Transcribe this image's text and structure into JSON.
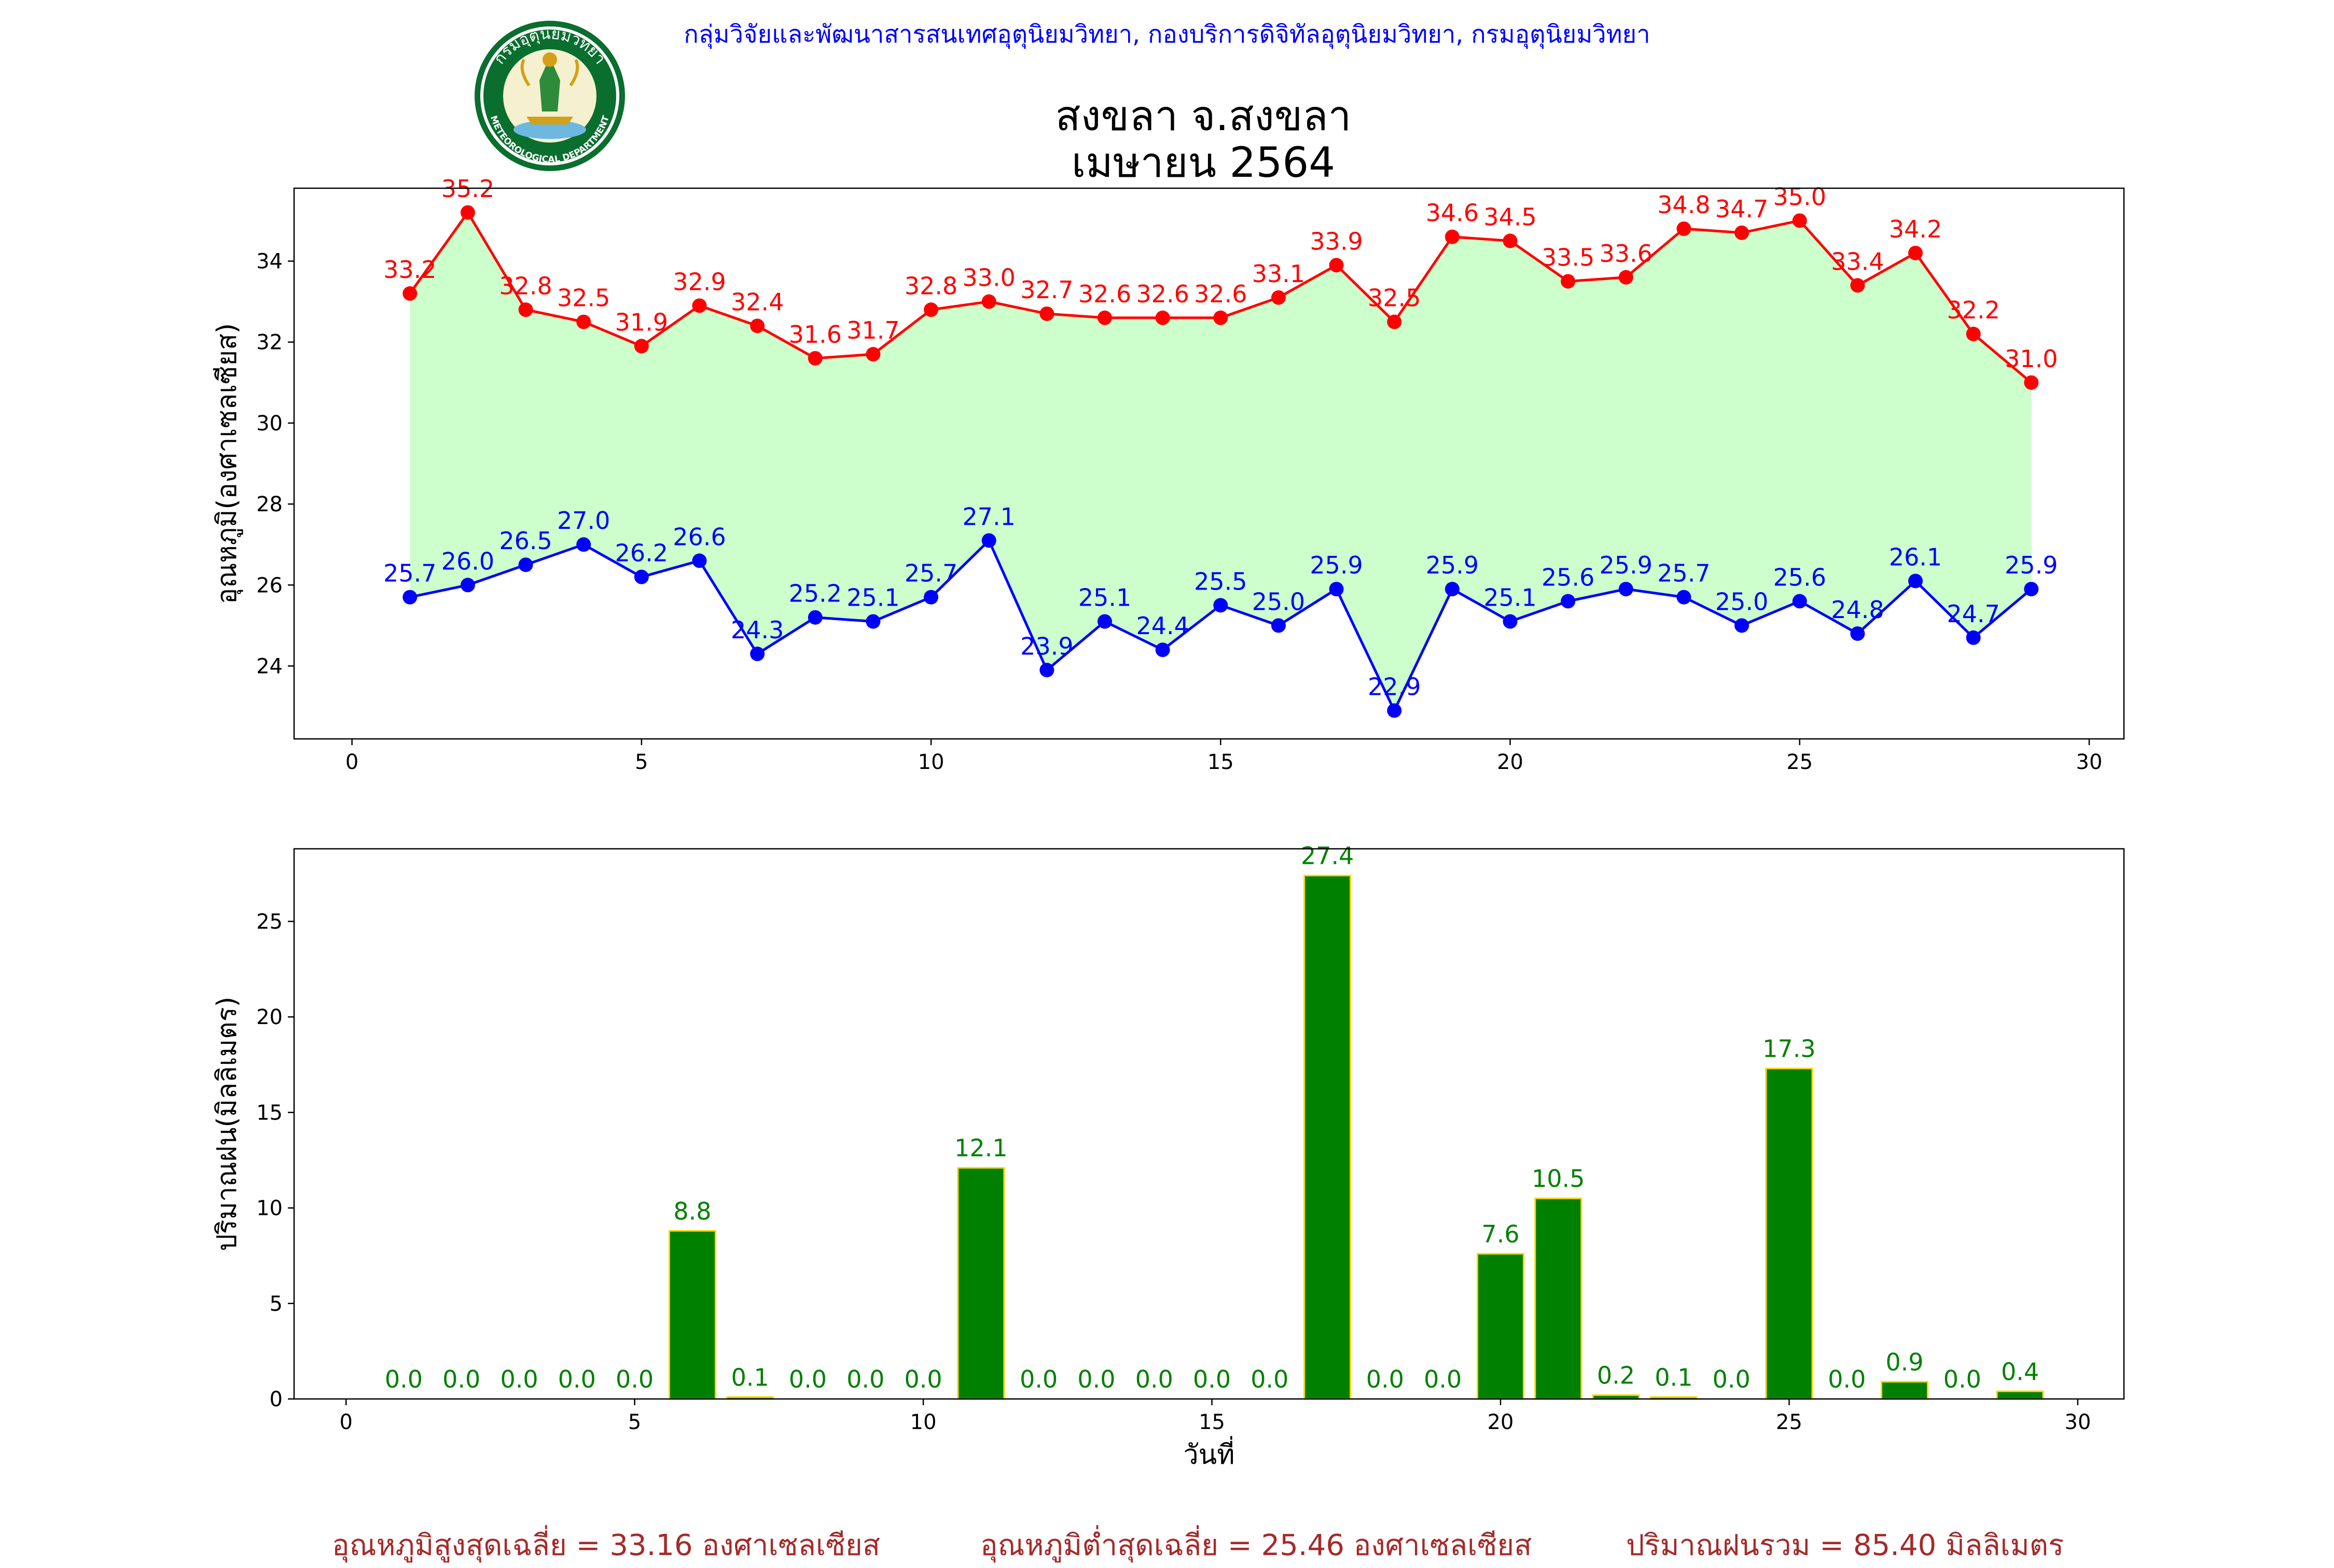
{
  "header": "กลุ่มวิจัยและพัฒนาสารสนเทศอุตุนิยมวิทยา, กองบริการดิจิทัลอุตุนิยมวิทยา, กรมอุตุนิยมวิทยา",
  "logo": {
    "top_text": "กรมอุตุนิยมวิทยา",
    "bottom_text": "METEOROLOGICAL DEPARTMENT"
  },
  "title_line1": "สงขลา จ.สงขลา",
  "title_line2": "เมษายน 2564",
  "footer": {
    "avg_max": "อุณหภูมิสูงสุดเฉลี่ย = 33.16 องศาเซลเซียส",
    "avg_min": "อุณหภูมิต่ำสุดเฉลี่ย = 25.46 องศาเซลเซียส",
    "rain_total": "ปริมาณฝนรวม = 85.40 มิลลิเมตร"
  },
  "colors": {
    "max_line": "#ff0000",
    "min_line": "#0000ff",
    "fill": "#ccffcc",
    "bar": "#008000",
    "bar_edge": "#ffd700",
    "footer": "#a52a2a",
    "header": "#0000ff"
  },
  "chart_data": [
    {
      "type": "line",
      "ylabel": "อุณหภูมิ(องศาเซลเซียส)",
      "xlim": [
        -1,
        30.6
      ],
      "ylim": [
        22.2,
        35.8
      ],
      "xticks": [
        0,
        5,
        10,
        15,
        20,
        25,
        30
      ],
      "yticks": [
        24,
        26,
        28,
        30,
        32,
        34
      ],
      "fill_between": true,
      "x": [
        1,
        2,
        3,
        4,
        5,
        6,
        7,
        8,
        9,
        10,
        11,
        12,
        13,
        14,
        15,
        16,
        17,
        18,
        19,
        20,
        21,
        22,
        23,
        24,
        25,
        26,
        27,
        28,
        29
      ],
      "series": [
        {
          "values": [
            33.2,
            35.2,
            32.8,
            32.5,
            31.9,
            32.9,
            32.4,
            31.6,
            31.7,
            32.8,
            33.0,
            32.7,
            32.6,
            32.6,
            32.6,
            33.1,
            33.9,
            32.5,
            34.6,
            34.5,
            33.5,
            33.6,
            34.8,
            34.7,
            35.0,
            33.4,
            34.2,
            32.2,
            31.0
          ]
        },
        {
          "values": [
            25.7,
            26.0,
            26.5,
            27.0,
            26.2,
            26.6,
            24.3,
            25.2,
            25.1,
            25.7,
            27.1,
            23.9,
            25.1,
            24.4,
            25.5,
            25.0,
            25.9,
            22.9,
            25.9,
            25.1,
            25.6,
            25.9,
            25.7,
            25.0,
            25.6,
            24.8,
            26.1,
            24.7,
            25.9
          ]
        }
      ]
    },
    {
      "type": "bar",
      "xlabel": "วันที่",
      "ylabel": "ปริมาณฝน(มิลลิเมตร)",
      "xlim": [
        -0.9,
        30.8
      ],
      "ylim": [
        0,
        28.8
      ],
      "xticks": [
        0,
        5,
        10,
        15,
        20,
        25,
        30
      ],
      "yticks": [
        0,
        5,
        10,
        15,
        20,
        25
      ],
      "categories": [
        1,
        2,
        3,
        4,
        5,
        6,
        7,
        8,
        9,
        10,
        11,
        12,
        13,
        14,
        15,
        16,
        17,
        18,
        19,
        20,
        21,
        22,
        23,
        24,
        25,
        26,
        27,
        28,
        29
      ],
      "values": [
        0.0,
        0.0,
        0.0,
        0.0,
        0.0,
        8.8,
        0.1,
        0.0,
        0.0,
        0.0,
        12.1,
        0.0,
        0.0,
        0.0,
        0.0,
        0.0,
        27.4,
        0.0,
        0.0,
        7.6,
        10.5,
        0.2,
        0.1,
        0.0,
        17.3,
        0.0,
        0.9,
        0.0,
        0.4
      ]
    }
  ]
}
